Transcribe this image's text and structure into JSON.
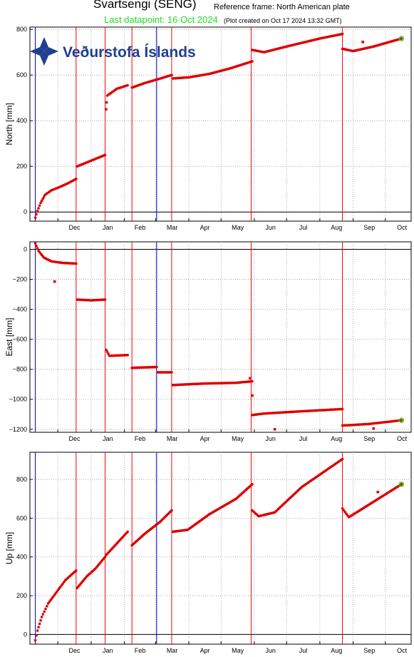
{
  "header": {
    "station_title": "Svartsengi (SENG)",
    "reference_frame": "Reference frame: North American plate",
    "last_datapoint": "Last datapoint: 16 Oct 2024",
    "plot_created": "(Plot created on Oct 17 2024 13:32 GMT)"
  },
  "logo": {
    "text": "Veðurstofa Íslands",
    "icon": "vedurstofa-snowflake-icon",
    "color": "#1f3f8f"
  },
  "colors": {
    "data": "#dd0000",
    "event_line": "#ff0000",
    "blue_line": "#0000cc",
    "last_point": "#22dd22"
  },
  "chart_data": [
    {
      "type": "scatter",
      "component": "north",
      "ylabel": "North [mm]",
      "ylim": [
        -40,
        810
      ],
      "yticks": [
        0,
        200,
        400,
        600,
        800
      ],
      "xlim": [
        "2023-11-05",
        "2024-10-25"
      ],
      "xticks": [
        "Dec",
        "Jan",
        "Feb",
        "Mar",
        "Apr",
        "May",
        "Jun",
        "Jul",
        "Aug",
        "Sep",
        "Oct"
      ],
      "grid": true,
      "segments": [
        {
          "x": [
            "2023-11-10",
            "2023-11-12",
            "2023-11-15",
            "2023-11-19",
            "2023-11-25",
            "2023-12-03",
            "2023-12-10",
            "2023-12-18"
          ],
          "y": [
            -25,
            5,
            40,
            75,
            95,
            110,
            125,
            145
          ]
        },
        {
          "x": [
            "2023-12-19",
            "2024-01-01",
            "2024-01-14"
          ],
          "y": [
            200,
            225,
            250
          ]
        },
        {
          "x": [
            "2024-01-15",
            "2024-01-16",
            "2024-01-25",
            "2024-02-04"
          ],
          "y": [
            450,
            510,
            540,
            555
          ]
        },
        {
          "x": [
            "2024-02-08",
            "2024-02-20",
            "2024-03-02",
            "2024-03-16"
          ],
          "y": [
            545,
            565,
            580,
            600
          ]
        },
        {
          "x": [
            "2024-03-17",
            "2024-04-01",
            "2024-04-20",
            "2024-05-10",
            "2024-05-30"
          ],
          "y": [
            585,
            590,
            605,
            630,
            660
          ]
        },
        {
          "x": [
            "2024-05-30",
            "2024-06-10",
            "2024-07-01",
            "2024-08-01",
            "2024-08-22"
          ],
          "y": [
            710,
            700,
            725,
            760,
            780
          ]
        },
        {
          "x": [
            "2024-08-22",
            "2024-09-01",
            "2024-09-20",
            "2024-10-16"
          ],
          "y": [
            715,
            705,
            725,
            760
          ]
        }
      ],
      "outliers": [
        {
          "x": "2024-09-10",
          "y": 745
        }
      ]
    },
    {
      "type": "scatter",
      "component": "east",
      "ylabel": "East [mm]",
      "ylim": [
        -1220,
        50
      ],
      "yticks": [
        0,
        -200,
        -400,
        -600,
        -800,
        -1000,
        -1200
      ],
      "xlim": [
        "2023-11-05",
        "2024-10-25"
      ],
      "xticks": [
        "Dec",
        "Jan",
        "Feb",
        "Mar",
        "Apr",
        "May",
        "Jun",
        "Jul",
        "Aug",
        "Sep",
        "Oct"
      ],
      "grid": true,
      "segments": [
        {
          "x": [
            "2023-11-10",
            "2023-11-13",
            "2023-11-18",
            "2023-11-25",
            "2023-12-05",
            "2023-12-18"
          ],
          "y": [
            40,
            -10,
            -55,
            -80,
            -90,
            -95
          ]
        },
        {
          "x": [
            "2023-12-19",
            "2024-01-01",
            "2024-01-14"
          ],
          "y": [
            -335,
            -340,
            -335
          ]
        },
        {
          "x": [
            "2024-01-15",
            "2024-01-18",
            "2024-02-04"
          ],
          "y": [
            -670,
            -710,
            -705
          ]
        },
        {
          "x": [
            "2024-02-08",
            "2024-03-01",
            "2024-03-02"
          ],
          "y": [
            -790,
            -785,
            -785
          ]
        },
        {
          "x": [
            "2024-03-03",
            "2024-03-16"
          ],
          "y": [
            -820,
            -820
          ]
        },
        {
          "x": [
            "2024-03-17",
            "2024-04-15",
            "2024-05-15",
            "2024-05-30"
          ],
          "y": [
            -905,
            -895,
            -890,
            -880
          ]
        },
        {
          "x": [
            "2024-05-30",
            "2024-06-10",
            "2024-07-15",
            "2024-08-22"
          ],
          "y": [
            -1105,
            -1095,
            -1080,
            -1065
          ]
        },
        {
          "x": [
            "2024-08-22",
            "2024-09-15",
            "2024-10-16"
          ],
          "y": [
            -1175,
            -1165,
            -1140
          ]
        }
      ],
      "outliers": [
        {
          "x": "2023-11-28",
          "y": -215
        },
        {
          "x": "2024-06-20",
          "y": -1200
        },
        {
          "x": "2024-09-20",
          "y": -1195
        },
        {
          "x": "2024-05-28",
          "y": -860
        },
        {
          "x": "2024-05-30",
          "y": -975
        }
      ]
    },
    {
      "type": "scatter",
      "component": "up",
      "ylabel": "Up [mm]",
      "ylim": [
        -50,
        940
      ],
      "yticks": [
        0,
        200,
        400,
        600,
        800
      ],
      "xlim": [
        "2023-11-05",
        "2024-10-25"
      ],
      "xticks": [
        "Dec",
        "Jan",
        "Feb",
        "Mar",
        "Apr",
        "May",
        "Jun",
        "Jul",
        "Aug",
        "Sep",
        "Oct"
      ],
      "grid": true,
      "segments": [
        {
          "x": [
            "2023-11-10",
            "2023-11-12",
            "2023-11-16",
            "2023-11-22",
            "2023-11-30",
            "2023-12-08",
            "2023-12-18"
          ],
          "y": [
            -30,
            20,
            90,
            160,
            220,
            280,
            330
          ]
        },
        {
          "x": [
            "2023-12-19",
            "2023-12-28",
            "2024-01-05",
            "2024-01-14"
          ],
          "y": [
            240,
            300,
            340,
            400
          ]
        },
        {
          "x": [
            "2024-01-15",
            "2024-01-25",
            "2024-02-04"
          ],
          "y": [
            410,
            470,
            530
          ]
        },
        {
          "x": [
            "2024-02-08",
            "2024-02-20",
            "2024-03-05",
            "2024-03-16"
          ],
          "y": [
            460,
            520,
            580,
            640
          ]
        },
        {
          "x": [
            "2024-03-17",
            "2024-03-31",
            "2024-04-20",
            "2024-05-15",
            "2024-05-30"
          ],
          "y": [
            530,
            540,
            620,
            700,
            775
          ]
        },
        {
          "x": [
            "2024-05-30",
            "2024-06-05",
            "2024-06-20",
            "2024-07-15",
            "2024-08-22"
          ],
          "y": [
            640,
            610,
            630,
            760,
            905
          ]
        },
        {
          "x": [
            "2024-08-22",
            "2024-08-28",
            "2024-09-10",
            "2024-10-16"
          ],
          "y": [
            650,
            605,
            650,
            775
          ]
        }
      ],
      "outliers": [
        {
          "x": "2024-09-24",
          "y": 735
        }
      ]
    }
  ],
  "event_lines_red": [
    "2023-12-18",
    "2024-01-14",
    "2024-02-08",
    "2024-03-16",
    "2024-05-29",
    "2024-08-22"
  ],
  "event_lines_blue": [
    "2023-11-10",
    "2024-03-02"
  ],
  "last_point": {
    "x": "2024-10-16",
    "north": 760,
    "east": -1140,
    "up": 775
  }
}
